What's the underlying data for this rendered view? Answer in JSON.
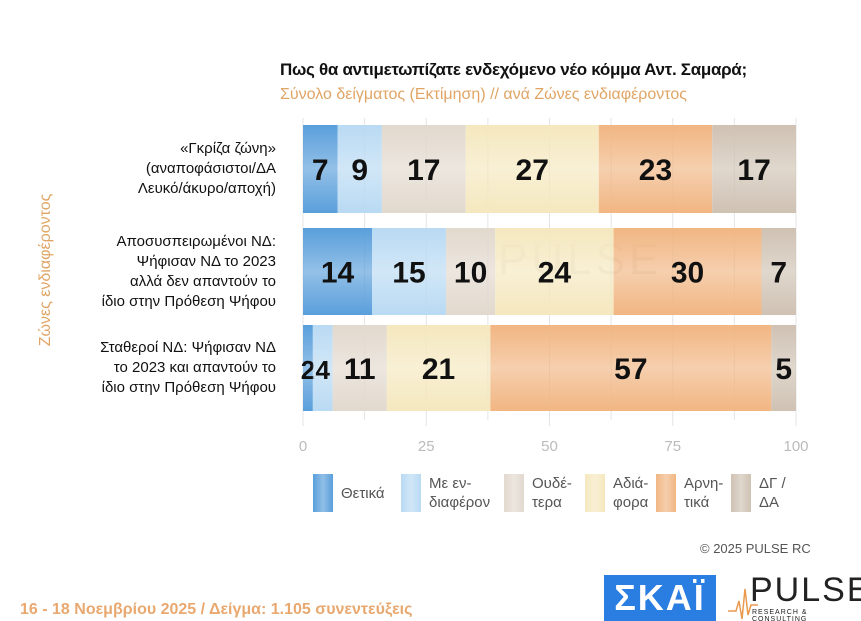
{
  "chart_data": {
    "type": "bar",
    "orientation": "horizontal",
    "stacked": true,
    "title": "Πως θα αντιμετωπίζατε ενδεχόμενο νέο κόμμα Αντ. Σαμαρά;",
    "subtitle": "Σύνολο δείγματος   (Εκτίμηση) // ανά Ζώνες ενδιαφέροντος",
    "ylabel": "Ζώνες ενδιαφέροντος",
    "xlabel": "",
    "xlim": [
      0,
      100
    ],
    "xticks": [
      "0",
      "25",
      "50",
      "75",
      "100"
    ],
    "grid": true,
    "legend_position": "bottom",
    "categories": [
      [
        "«Γκρίζα ζώνη»",
        "(αναποφάσιστοι/ΔΑ",
        "Λευκό/άκυρο/αποχή)"
      ],
      [
        "Αποσυσπειρωμένοι ΝΔ:",
        "Ψήφισαν ΝΔ το 2023",
        "αλλά δεν απαντούν το",
        "ίδιο στην Πρόθεση Ψήφου"
      ],
      [
        "Σταθεροί ΝΔ: Ψήφισαν ΝΔ",
        "το 2023 και απαντούν το",
        "ίδιο στην Πρόθεση Ψήφου"
      ]
    ],
    "series": [
      {
        "name": "Θετικά",
        "legend": [
          "Θετικά"
        ],
        "color": "#5a9fdb",
        "values": [
          7,
          14,
          2
        ]
      },
      {
        "name": "Με ενδιαφέρον",
        "legend": [
          "Με εν-",
          "διαφέρον"
        ],
        "color": "#b9daf3",
        "values": [
          9,
          15,
          4
        ]
      },
      {
        "name": "Ουδέτερα",
        "legend": [
          "Ουδέ-",
          "τερα"
        ],
        "color": "#e2d9ce",
        "values": [
          17,
          10,
          11
        ]
      },
      {
        "name": "Αδιάφορα",
        "legend": [
          "Αδιά-",
          "φορα"
        ],
        "color": "#f5e8bf",
        "values": [
          27,
          24,
          21
        ]
      },
      {
        "name": "Αρνητικά",
        "legend": [
          "Αρνη-",
          "τικά"
        ],
        "color": "#f1b683",
        "values": [
          23,
          30,
          57
        ]
      },
      {
        "name": "ΔΓ / ΔΑ",
        "legend": [
          "ΔΓ /",
          "ΔΑ"
        ],
        "color": "#cfc2b3",
        "values": [
          17,
          7,
          5
        ]
      }
    ]
  },
  "footer": {
    "copyright": "©  2025  PULSE RC",
    "date_sample": "16 - 18 Νοεμβρίου 2025  /  Δείγμα:  1.105 συνεντεύξεις",
    "logo_skai": "ΣΚΑΪ",
    "logo_pulse": "PULSE",
    "logo_pulse_sub": "RESEARCH & CONSULTING"
  },
  "watermark": "PULSE"
}
